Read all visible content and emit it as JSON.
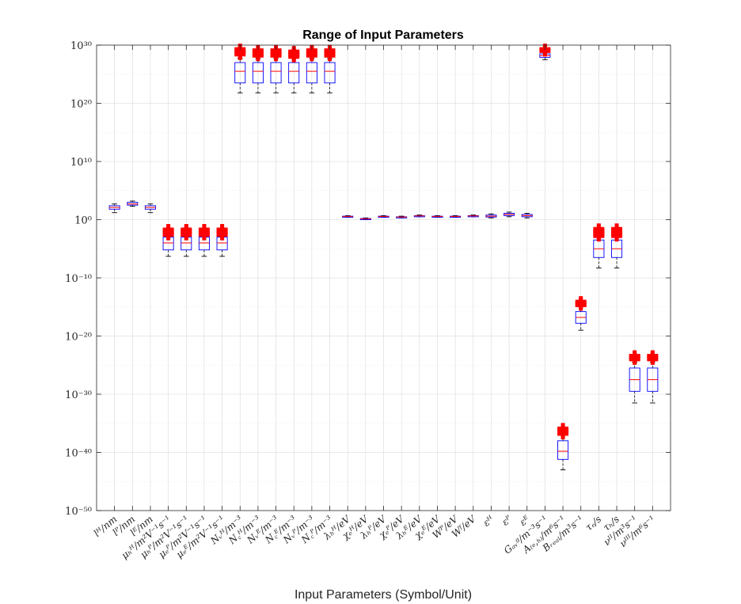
{
  "chart_data": {
    "type": "box",
    "title": "Range of Input Parameters",
    "xlabel": "Input Parameters (Symbol/Unit)",
    "ylabel": "",
    "yscale": "log",
    "ylim_log10": [
      -50,
      30
    ],
    "ytick_exponents": [
      -50,
      -40,
      -30,
      -20,
      -10,
      0,
      10,
      20,
      30
    ],
    "ytick_labels": [
      "10⁻⁵⁰",
      "10⁻⁴⁰",
      "10⁻³⁰",
      "10⁻²⁰",
      "10⁻¹⁰",
      "10⁰",
      "10¹⁰",
      "10²⁰",
      "10³⁰"
    ],
    "grid": true,
    "box_color": "#0000ff",
    "median_color": "#ff0000",
    "outlier_color": "#ff0000",
    "whisker_color": "#000000",
    "categories": [
      "lᴴ/nm",
      "lᴾ/nm",
      "lᴱ/nm",
      "μₕᴴ/m²V⁻¹s⁻¹",
      "μₕᴾ/m²V⁻¹s⁻¹",
      "μₑᴾ/m²V⁻¹s⁻¹",
      "μₑᴱ/m²V⁻¹s⁻¹",
      "Nᵥᴴ/m⁻³",
      "N꜀ᴴ/m⁻³",
      "Nᵥᴱ/m⁻³",
      "N꜀ᴱ/m⁻³",
      "Nᵥᴾ/m⁻³",
      "N꜀ᴾ/m⁻³",
      "λₕᴴ/eV",
      "χₑᴴ/eV",
      "λₕᴾ/eV",
      "χₑᴾ/eV",
      "λₕᴱ/eV",
      "χₑᴱ/eV",
      "Wᴾ/eV",
      "Wᶠ/eV",
      "εᴴ",
      "εᴾ",
      "εᴱ",
      "Gₐᵥᵍ/m⁻³s⁻¹",
      "A₍ₑ,ₕ₎/m⁶s⁻¹",
      "Bᵣₑₐₗ/m³s⁻¹",
      "τₑ/s",
      "τₕ/s",
      "νᴵᴵ/m³s⁻¹",
      "νᴵᴵᴵ/m⁶s⁻¹"
    ],
    "boxes_log10": [
      {
        "whislo": 1.2,
        "q1": 1.8,
        "median": 2.1,
        "q3": 2.4,
        "whishi": 2.7,
        "outliers": []
      },
      {
        "whislo": 2.3,
        "q1": 2.5,
        "median": 2.7,
        "q3": 3.0,
        "whishi": 3.2,
        "outliers": []
      },
      {
        "whislo": 1.2,
        "q1": 1.8,
        "median": 2.1,
        "q3": 2.4,
        "whishi": 2.7,
        "outliers": []
      },
      {
        "whislo": -6.3,
        "q1": -5.2,
        "median": -4.0,
        "q3": -3.0,
        "whishi": -2.0,
        "outliers": [
          -2.6,
          -2.3,
          -2.0,
          -1.7
        ]
      },
      {
        "whislo": -6.3,
        "q1": -5.2,
        "median": -4.0,
        "q3": -3.0,
        "whishi": -2.0,
        "outliers": [
          -2.6,
          -2.3,
          -2.0,
          -1.7
        ]
      },
      {
        "whislo": -6.3,
        "q1": -5.2,
        "median": -4.0,
        "q3": -3.0,
        "whishi": -2.0,
        "outliers": [
          -2.6,
          -2.3,
          -2.0,
          -1.7
        ]
      },
      {
        "whislo": -6.3,
        "q1": -5.2,
        "median": -4.0,
        "q3": -3.0,
        "whishi": -2.0,
        "outliers": [
          -2.6,
          -2.3,
          -2.0,
          -1.7
        ]
      },
      {
        "whislo": 21.8,
        "q1": 23.5,
        "median": 25.5,
        "q3": 27.0,
        "whishi": 27.7,
        "outliers": [
          28.4,
          28.7,
          29.0,
          29.3
        ]
      },
      {
        "whislo": 21.8,
        "q1": 23.5,
        "median": 25.5,
        "q3": 27.0,
        "whishi": 27.7,
        "outliers": [
          28.2,
          28.5,
          28.8,
          29.1
        ]
      },
      {
        "whislo": 21.8,
        "q1": 23.5,
        "median": 25.5,
        "q3": 27.0,
        "whishi": 27.7,
        "outliers": [
          28.2,
          28.5,
          28.8,
          29.1
        ]
      },
      {
        "whislo": 21.8,
        "q1": 23.5,
        "median": 25.5,
        "q3": 27.0,
        "whishi": 27.7,
        "outliers": [
          28.0,
          28.3,
          28.6,
          28.9
        ]
      },
      {
        "whislo": 21.8,
        "q1": 23.5,
        "median": 25.5,
        "q3": 27.0,
        "whishi": 27.7,
        "outliers": [
          28.2,
          28.5,
          28.8,
          29.1
        ]
      },
      {
        "whislo": 21.8,
        "q1": 23.5,
        "median": 25.5,
        "q3": 27.0,
        "whishi": 27.7,
        "outliers": [
          28.2,
          28.5,
          28.8,
          29.1
        ]
      },
      {
        "whislo": 0.4,
        "q1": 0.5,
        "median": 0.55,
        "q3": 0.6,
        "whishi": 0.7,
        "outliers": []
      },
      {
        "whislo": 0.0,
        "q1": 0.1,
        "median": 0.15,
        "q3": 0.2,
        "whishi": 0.3,
        "outliers": []
      },
      {
        "whislo": 0.4,
        "q1": 0.5,
        "median": 0.55,
        "q3": 0.6,
        "whishi": 0.7,
        "outliers": []
      },
      {
        "whislo": 0.3,
        "q1": 0.4,
        "median": 0.45,
        "q3": 0.5,
        "whishi": 0.6,
        "outliers": []
      },
      {
        "whislo": 0.5,
        "q1": 0.6,
        "median": 0.65,
        "q3": 0.7,
        "whishi": 0.8,
        "outliers": []
      },
      {
        "whislo": 0.4,
        "q1": 0.5,
        "median": 0.55,
        "q3": 0.6,
        "whishi": 0.7,
        "outliers": []
      },
      {
        "whislo": 0.4,
        "q1": 0.5,
        "median": 0.55,
        "q3": 0.6,
        "whishi": 0.7,
        "outliers": []
      },
      {
        "whislo": 0.5,
        "q1": 0.6,
        "median": 0.65,
        "q3": 0.7,
        "whishi": 0.8,
        "outliers": []
      },
      {
        "whislo": 0.3,
        "q1": 0.45,
        "median": 0.6,
        "q3": 0.8,
        "whishi": 1.0,
        "outliers": []
      },
      {
        "whislo": 0.5,
        "q1": 0.7,
        "median": 0.9,
        "q3": 1.1,
        "whishi": 1.3,
        "outliers": []
      },
      {
        "whislo": 0.3,
        "q1": 0.5,
        "median": 0.7,
        "q3": 0.9,
        "whishi": 1.1,
        "outliers": []
      },
      {
        "whislo": 27.5,
        "q1": 27.9,
        "median": 28.2,
        "q3": 28.5,
        "whishi": 28.8,
        "outliers": [
          29.0,
          29.3
        ]
      },
      {
        "whislo": -43.0,
        "q1": -41.2,
        "median": -39.8,
        "q3": -38.0,
        "whishi": -37.0,
        "outliers": [
          -36.8,
          -36.5,
          -36.2,
          -35.9
        ]
      },
      {
        "whislo": -19.0,
        "q1": -17.8,
        "median": -16.8,
        "q3": -15.8,
        "whishi": -15.0,
        "outliers": [
          -14.7,
          -14.4,
          -14.1
        ]
      },
      {
        "whislo": -8.3,
        "q1": -6.5,
        "median": -5.0,
        "q3": -3.5,
        "whishi": -3.0,
        "outliers": [
          -2.8,
          -2.5,
          -2.2,
          -1.9,
          -1.6
        ]
      },
      {
        "whislo": -8.3,
        "q1": -6.5,
        "median": -5.0,
        "q3": -3.5,
        "whishi": -3.0,
        "outliers": [
          -2.8,
          -2.5,
          -2.2,
          -1.9,
          -1.6
        ]
      },
      {
        "whislo": -31.5,
        "q1": -29.5,
        "median": -27.5,
        "q3": -25.5,
        "whishi": -24.5,
        "outliers": [
          -24.0,
          -23.7,
          -23.4
        ]
      },
      {
        "whislo": -31.5,
        "q1": -29.5,
        "median": -27.5,
        "q3": -25.5,
        "whishi": -24.5,
        "outliers": [
          -24.0,
          -23.7,
          -23.4
        ]
      }
    ]
  }
}
